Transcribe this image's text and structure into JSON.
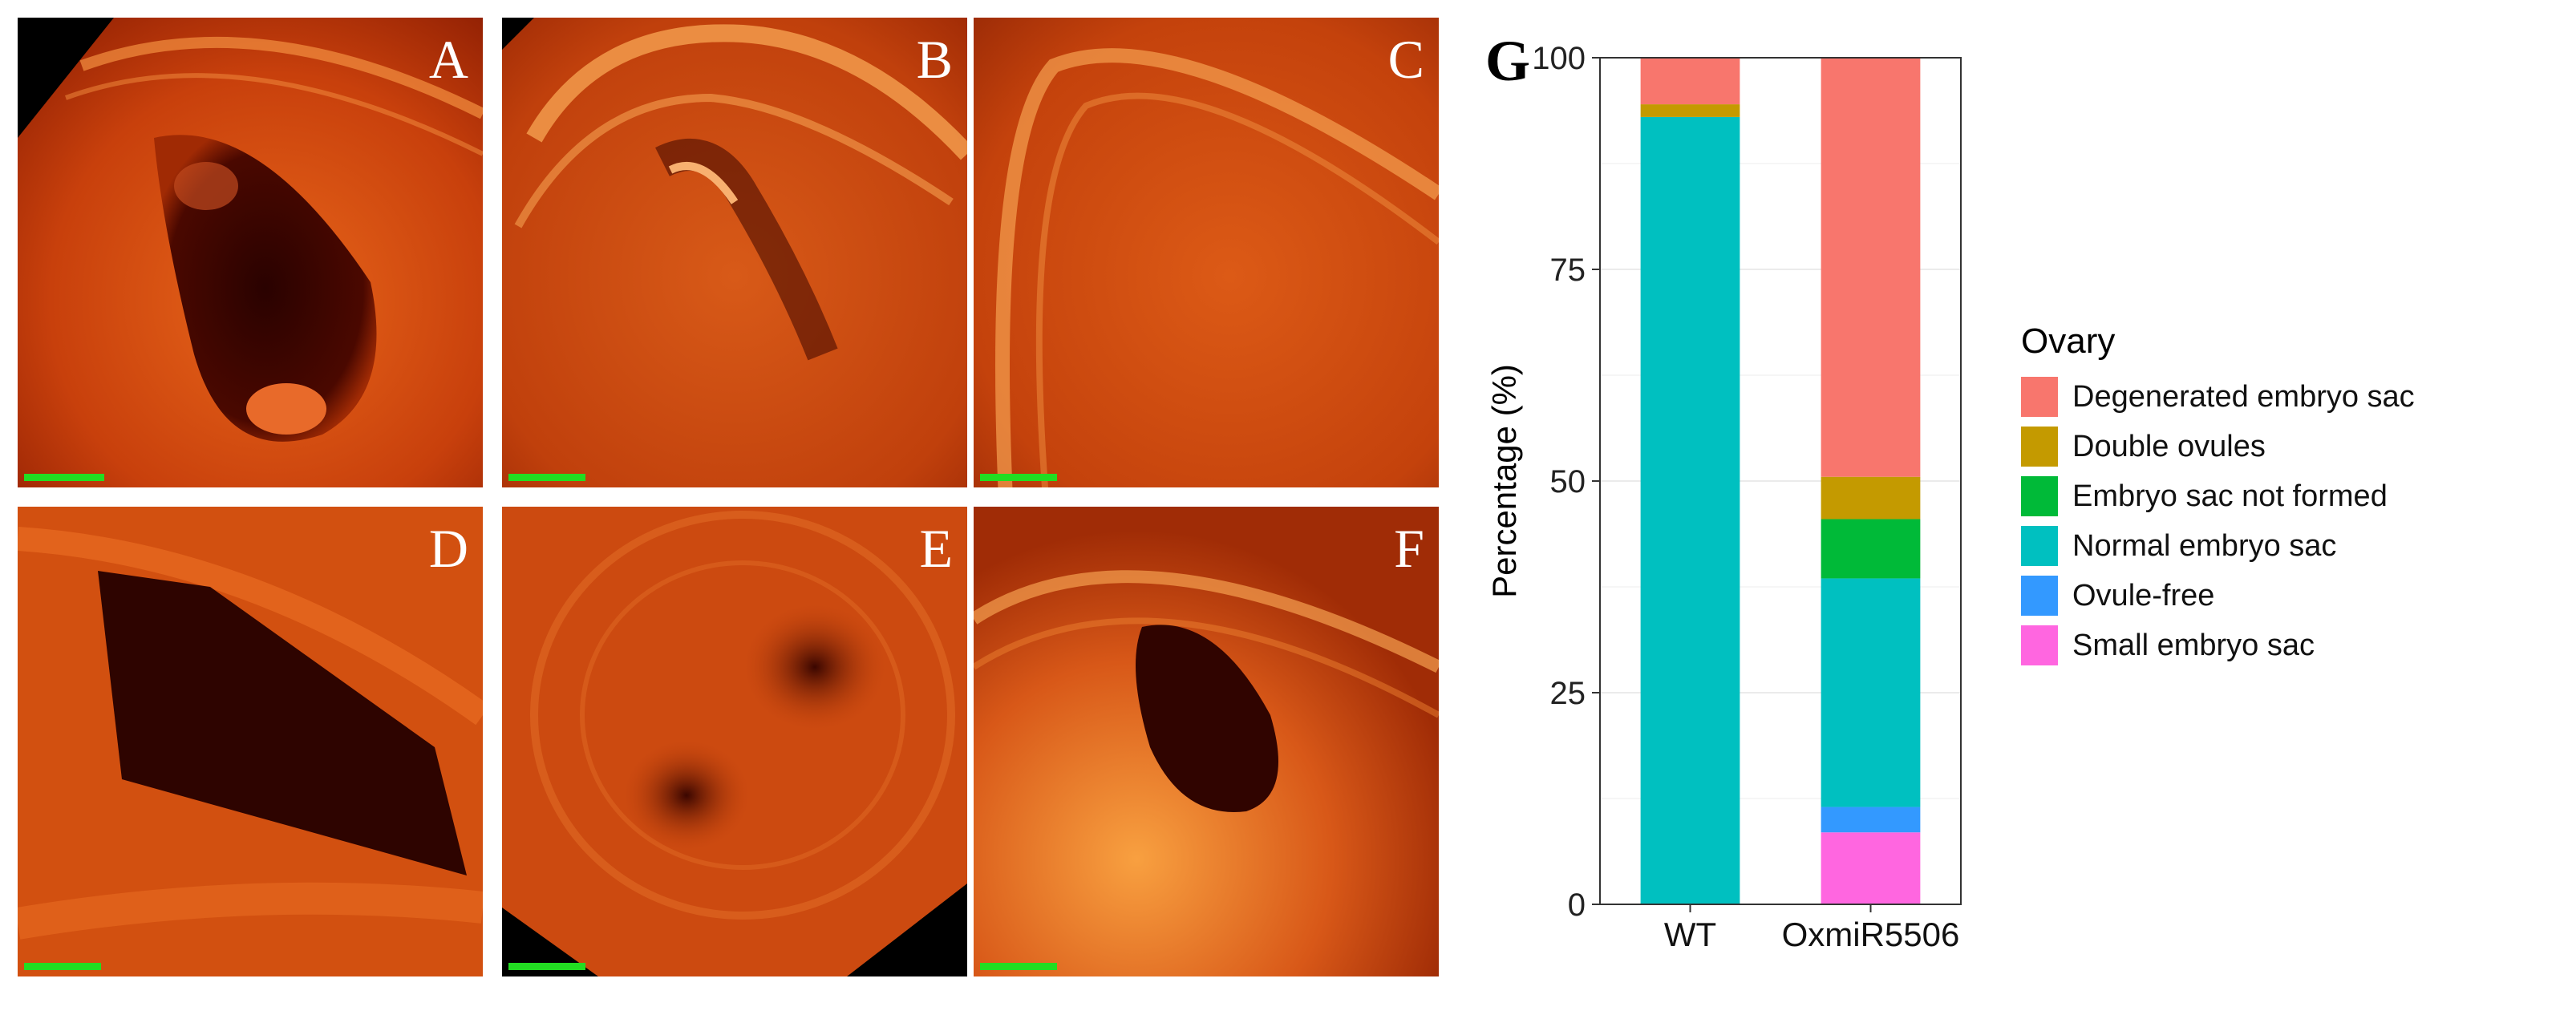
{
  "panels": [
    {
      "label": "A"
    },
    {
      "label": "B"
    },
    {
      "label": "C"
    },
    {
      "label": "D"
    },
    {
      "label": "E"
    },
    {
      "label": "F"
    }
  ],
  "colors": {
    "scalebar": "#22dd22",
    "tissue_bright": "#f07a20",
    "tissue_mid": "#c43a08",
    "tissue_dark": "#3a0400"
  },
  "chart_data": {
    "panel_label": "G",
    "type": "bar",
    "stacked": true,
    "categories": [
      "WT",
      "OxmiR5506"
    ],
    "ylabel": "Percentage (%)",
    "xlabel": "",
    "ylim": [
      0,
      100
    ],
    "yticks": [
      0,
      25,
      50,
      75,
      100
    ],
    "grid": true,
    "legend_title": "Ovary",
    "legend_position": "right",
    "series": [
      {
        "name": "Degenerated embryo sac",
        "color": "#f8766d",
        "values": [
          5.5,
          49.5
        ]
      },
      {
        "name": "Double ovules",
        "color": "#c49a00",
        "values": [
          1.5,
          5.0
        ]
      },
      {
        "name": "Embryo sac not formed",
        "color": "#00ba38",
        "values": [
          0.0,
          7.0
        ]
      },
      {
        "name": "Normal embryo sac",
        "color": "#00c0c0",
        "values": [
          93.0,
          27.0
        ]
      },
      {
        "name": "Ovule-free",
        "color": "#3399ff",
        "values": [
          0.0,
          3.0
        ]
      },
      {
        "name": "Small embryo sac",
        "color": "#ff66e0",
        "values": [
          0.0,
          8.5
        ]
      }
    ]
  }
}
